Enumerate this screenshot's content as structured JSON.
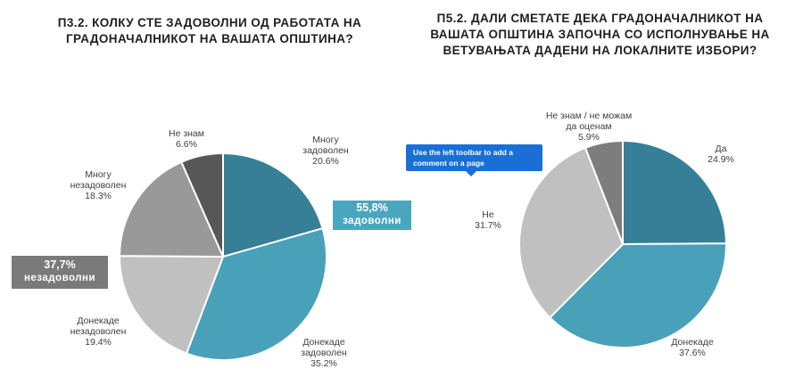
{
  "chart_data": [
    {
      "type": "pie",
      "title": "П3.2. КОЛКУ СТЕ ЗАДОВОЛНИ ОД РАБОТАТА НА ГРАДОНАЧАЛНИКОТ НА ВАШАТА ОПШТИНА?",
      "slices": [
        {
          "name": "Многу задоволен",
          "value": 20.6,
          "label": "20.6%",
          "color": "#367f97"
        },
        {
          "name": "Донекаде задоволен",
          "value": 35.2,
          "label": "35.2%",
          "color": "#48a1b9"
        },
        {
          "name": "Донекаде незадоволен",
          "value": 19.4,
          "label": "19.4%",
          "color": "#c0c0c0"
        },
        {
          "name": "Многу незадоволен",
          "value": 18.3,
          "label": "18.3%",
          "color": "#999999"
        },
        {
          "name": "Не знам",
          "value": 6.6,
          "label": "6.6%",
          "color": "#575757"
        }
      ],
      "callouts": {
        "satisfied": {
          "value": "55,8%",
          "text": "задоволни",
          "color": "#4aa6be"
        },
        "unsatisfied": {
          "value": "37,7%",
          "text": "незадоволни",
          "color": "#7a7a7a"
        }
      }
    },
    {
      "type": "pie",
      "title": "П5.2. ДАЛИ СМЕТАТЕ ДЕКА ГРАДОНАЧАЛНИКОТ НА ВАШАТА ОПШТИНА ЗАПОЧНА СО ИСПОЛНУВАЊЕ НА ВЕТУВАЊАТА ДАДЕНИ НА ЛОКАЛНИТЕ ИЗБОРИ?",
      "slices": [
        {
          "name": "Да",
          "value": 24.9,
          "label": "24.9%",
          "color": "#367f97"
        },
        {
          "name": "Донекаде",
          "value": 37.6,
          "label": "37.6%",
          "color": "#48a1b9"
        },
        {
          "name": "Не",
          "value": 31.7,
          "label": "31.7%",
          "color": "#c0c0c0"
        },
        {
          "name": "Не знам / не можам да оценам",
          "value": 5.9,
          "label": "5.9%",
          "color": "#7d7d7d"
        }
      ]
    }
  ],
  "tooltip": {
    "text": "Use the left toolbar to add a comment on a page"
  }
}
